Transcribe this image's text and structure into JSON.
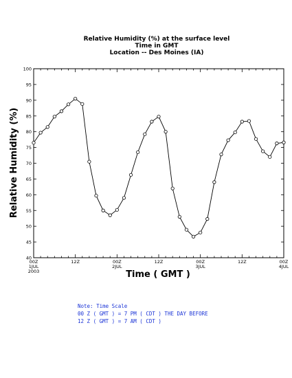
{
  "chart_data": {
    "type": "line",
    "title": [
      "Relative Humidity (%) at the surface level",
      "Time in GMT",
      "Location -- Des Moines (IA)"
    ],
    "xlabel": "Time ( GMT )",
    "ylabel": "Relative Humidity (%)",
    "ylim": [
      40,
      100
    ],
    "yticks": [
      40,
      45,
      50,
      55,
      60,
      65,
      70,
      75,
      80,
      85,
      90,
      95,
      100
    ],
    "xlim": [
      0,
      72
    ],
    "xticks": [
      {
        "x": 0,
        "lines": [
          "00Z",
          "1JUL",
          "2003"
        ]
      },
      {
        "x": 12,
        "lines": [
          "12Z"
        ]
      },
      {
        "x": 24,
        "lines": [
          "00Z",
          "2JUL"
        ]
      },
      {
        "x": 36,
        "lines": [
          "12Z"
        ]
      },
      {
        "x": 48,
        "lines": [
          "00Z",
          "3JUL"
        ]
      },
      {
        "x": 60,
        "lines": [
          "12Z"
        ]
      },
      {
        "x": 72,
        "lines": [
          "00Z",
          "4JUL"
        ]
      }
    ],
    "grid": false,
    "series": [
      {
        "x": [
          0,
          2,
          4,
          6,
          8,
          10,
          12,
          14,
          16,
          18,
          20,
          22,
          24,
          26,
          28,
          30,
          32,
          34,
          36,
          38,
          40,
          42,
          44,
          46,
          48,
          50,
          52,
          54,
          56,
          58,
          60,
          62,
          64,
          66,
          68,
          70,
          72
        ],
        "values": [
          76.5,
          79.7,
          81.5,
          84.8,
          86.5,
          88.7,
          90.5,
          88.8,
          70.5,
          59.7,
          55.0,
          53.5,
          55.2,
          59.0,
          66.3,
          73.5,
          79.2,
          83.2,
          84.8,
          80.0,
          62.0,
          53.0,
          48.9,
          46.7,
          48.0,
          52.3,
          64.0,
          72.8,
          77.3,
          79.8,
          83.2,
          83.4,
          77.7,
          73.8,
          72.0,
          76.3,
          76.6
        ]
      }
    ]
  },
  "note": {
    "line1": "Note: Time Scale",
    "line2": "00 Z ( GMT ) = 7 PM ( CDT ) THE DAY BEFORE",
    "line3": "12 Z ( GMT ) = 7 AM ( CDT )"
  }
}
